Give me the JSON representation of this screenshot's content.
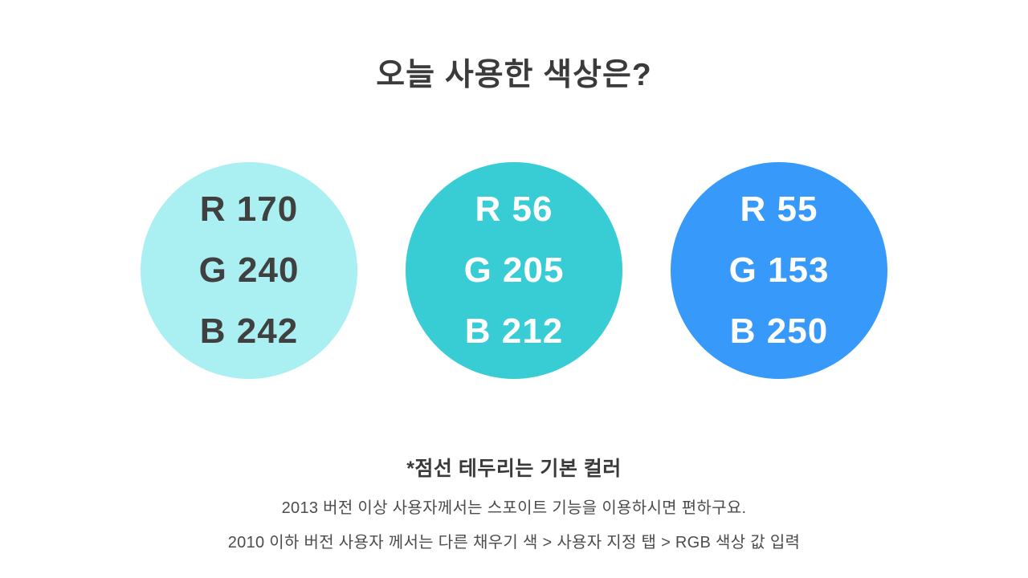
{
  "slide": {
    "background": "#FFFFFF",
    "title": "오늘 사용한 색상은?",
    "title_color": "#3B3B3B",
    "circles": [
      {
        "name": "light-cyan",
        "fill": "#AAF0F2",
        "text_color": "#404040",
        "lines": [
          "R 170",
          "G 240",
          "B 242"
        ]
      },
      {
        "name": "teal",
        "fill": "#38CDD4",
        "text_color": "#FFFFFF",
        "lines": [
          "R 56",
          "G 205",
          "B 212"
        ]
      },
      {
        "name": "blue",
        "fill": "#3799FA",
        "text_color": "#FFFFFF",
        "lines": [
          "R 55",
          "G 153",
          "B 250"
        ]
      }
    ],
    "footnote": {
      "bold_note": "*점선 테두리는 기본 컬러",
      "line1": "2013 버전 이상 사용자께서는 스포이트 기능을 이용하시면 편하구요.",
      "line2": "2010 이하 버전 사용자 께서는 다른 채우기 색 > 사용자 지정 탭 > RGB 색상 값 입력"
    }
  }
}
